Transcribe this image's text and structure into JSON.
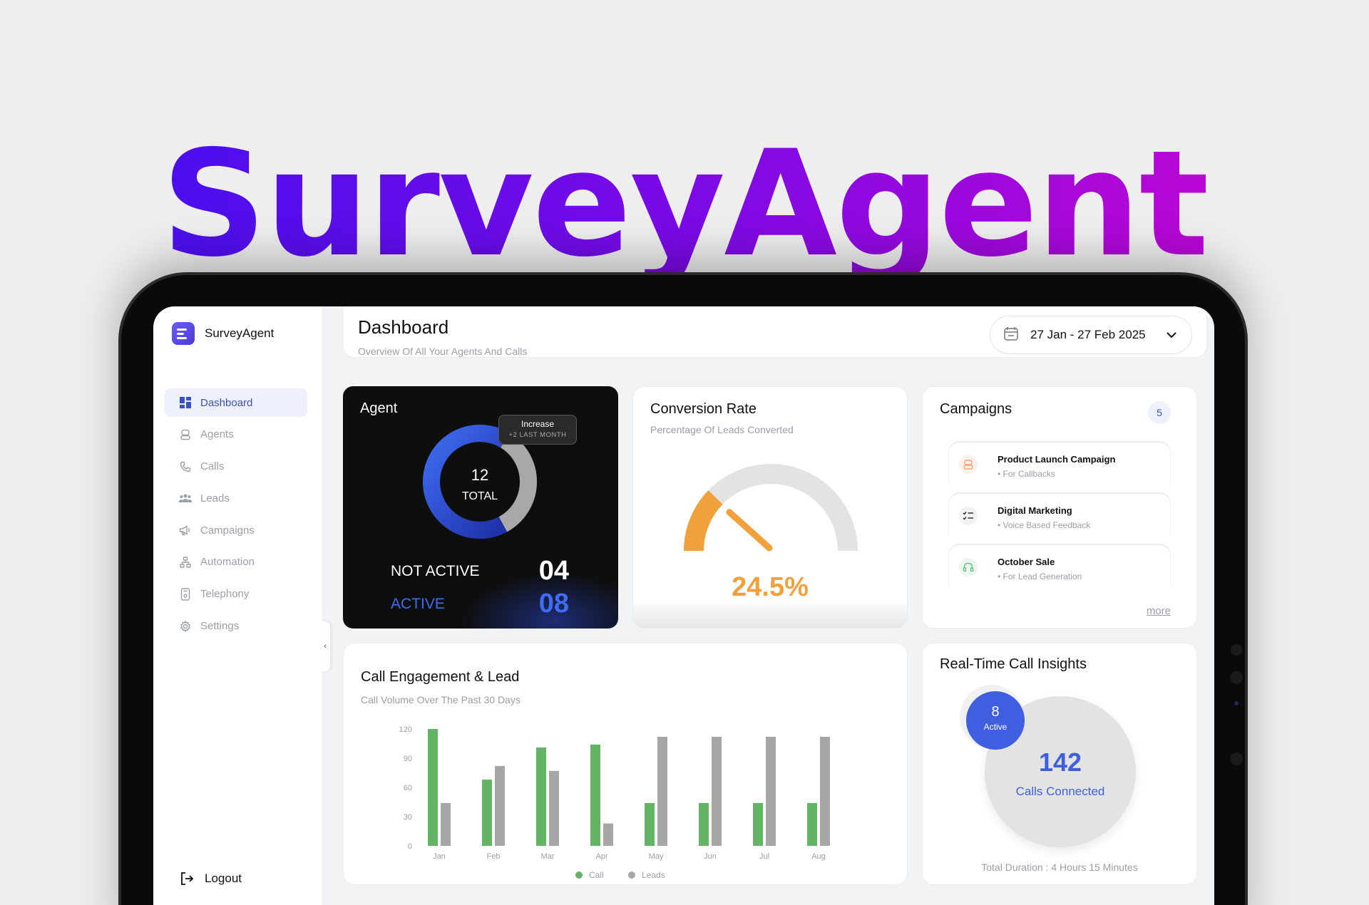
{
  "hero": {
    "title": "SurveyAgent"
  },
  "brand": {
    "name": "SurveyAgent"
  },
  "sidebar": {
    "items": [
      {
        "label": "Dashboard",
        "icon": "grid-icon",
        "active": true
      },
      {
        "label": "Agents",
        "icon": "agent-icon"
      },
      {
        "label": "Calls",
        "icon": "phone-icon"
      },
      {
        "label": "Leads",
        "icon": "users-icon"
      },
      {
        "label": "Campaigns",
        "icon": "megaphone-icon"
      },
      {
        "label": "Automation",
        "icon": "automation-icon"
      },
      {
        "label": "Telephony",
        "icon": "telephony-icon"
      },
      {
        "label": "Settings",
        "icon": "gear-icon"
      }
    ],
    "logout": "Logout"
  },
  "header": {
    "title": "Dashboard",
    "subtitle": "Overview Of All Your Agents And Calls",
    "date_range": "27 Jan - 27 Feb 2025"
  },
  "agent": {
    "title": "Agent",
    "total": "12",
    "total_label": "TOTAL",
    "tooltip_title": "Increase",
    "tooltip_detail": "+2 LAST MONTH",
    "not_active_label": "NOT ACTIVE",
    "not_active_value": "04",
    "active_label": "ACTIVE",
    "active_value": "08",
    "active_count": 8,
    "inactive_count": 4
  },
  "conversion": {
    "title": "Conversion Rate",
    "subtitle": "Percentage Of Leads Converted",
    "value": "24.5%",
    "fraction": 0.245
  },
  "campaigns": {
    "title": "Campaigns",
    "count": "5",
    "items": [
      {
        "name": "Product Launch Campaign",
        "desc": "• For Callbacks",
        "icon": "robot-icon",
        "color": "#f3a474"
      },
      {
        "name": "Digital Marketing",
        "desc": "• Voice Based Feedback",
        "icon": "checklist-icon",
        "color": "#333333"
      },
      {
        "name": "October Sale",
        "desc": "• For Lead Generation",
        "icon": "headset-icon",
        "color": "#6cc08a"
      }
    ],
    "more": "more"
  },
  "engagement": {
    "title": "Call Engagement & Lead",
    "subtitle": "Call Volume Over The Past 30 Days"
  },
  "chart_data": {
    "type": "bar",
    "categories": [
      "Jan",
      "Feb",
      "Mar",
      "Apr",
      "May",
      "Jun",
      "Jul",
      "Aug"
    ],
    "series": [
      {
        "name": "Call",
        "color": "#63b565",
        "values": [
          120,
          68,
          101,
          104,
          44,
          44,
          44,
          44
        ]
      },
      {
        "name": "Leads",
        "color": "#a6a6a6",
        "values": [
          44,
          82,
          77,
          23,
          112,
          112,
          112,
          112
        ]
      }
    ],
    "yticks": [
      "0",
      "30",
      "60",
      "90",
      "120"
    ],
    "ylim": [
      0,
      120
    ],
    "legend": "bottom-center",
    "grid": false
  },
  "realtime": {
    "title": "Real-Time Call Insights",
    "active_count": "8",
    "active_label": "Active",
    "calls": "142",
    "calls_label": "Calls Connected",
    "duration": "Total Duration : 4 Hours 15 Minutes"
  },
  "colors": {
    "accent": "#3b50c4",
    "gauge": "#f1a13c",
    "blue": "#3f5fe0"
  }
}
